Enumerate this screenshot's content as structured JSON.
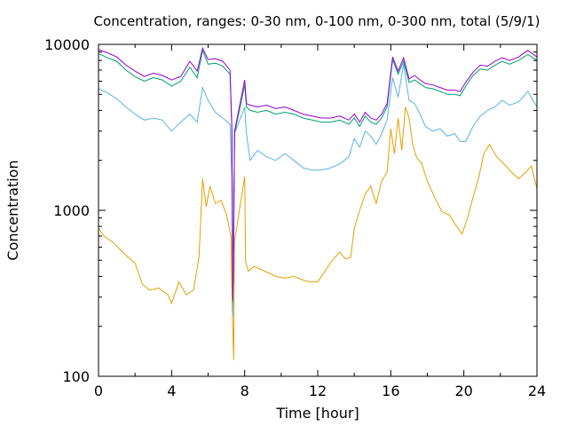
{
  "chart_data": {
    "type": "line",
    "title": "Concentration, ranges: 0-30 nm, 0-100 nm, 0-300 nm, total (5/9/1)",
    "xlabel": "Time [hour]",
    "ylabel": "Concentration",
    "xlim": [
      0,
      24
    ],
    "ylim": [
      100,
      10000
    ],
    "yscale": "log",
    "grid": false,
    "x_ticks": [
      0,
      4,
      8,
      12,
      16,
      20,
      24
    ],
    "x_tick_labels": [
      "0",
      "4",
      "8",
      "12",
      "16",
      "20",
      "24"
    ],
    "y_ticks": [
      100,
      1000,
      10000
    ],
    "y_tick_labels": [
      "100",
      "1000",
      "10000"
    ],
    "series": [
      {
        "color": "#e69f00",
        "x": [
          0,
          0.3,
          0.8,
          1.4,
          2.0,
          2.4,
          2.8,
          3.3,
          3.8,
          4.0,
          4.4,
          4.8,
          5.2,
          5.5,
          5.7,
          5.9,
          6.1,
          6.4,
          6.7,
          7.0,
          7.25,
          7.32,
          7.4,
          7.45,
          8.0,
          8.05,
          8.2,
          8.5,
          8.9,
          9.3,
          9.7,
          10.2,
          10.7,
          11.2,
          11.6,
          12.0,
          12.4,
          12.8,
          13.2,
          13.5,
          13.8,
          14.0,
          14.3,
          14.6,
          14.9,
          15.2,
          15.5,
          15.8,
          16.0,
          16.2,
          16.4,
          16.6,
          16.8,
          17.0,
          17.2,
          17.4,
          17.7,
          18.0,
          18.4,
          18.8,
          19.2,
          19.6,
          19.9,
          20.2,
          20.5,
          20.8,
          21.1,
          21.4,
          21.8,
          22.2,
          22.6,
          23.0,
          23.4,
          23.7,
          24.0
        ],
        "y": [
          780,
          700,
          640,
          550,
          480,
          360,
          330,
          340,
          310,
          275,
          370,
          310,
          330,
          520,
          1550,
          1050,
          1400,
          1100,
          1150,
          950,
          700,
          260,
          125,
          650,
          1600,
          490,
          430,
          460,
          440,
          420,
          400,
          390,
          400,
          380,
          370,
          370,
          430,
          500,
          560,
          510,
          520,
          780,
          1000,
          1250,
          1400,
          1100,
          1500,
          1700,
          3100,
          2200,
          3600,
          2300,
          4200,
          3600,
          2500,
          2100,
          1900,
          1500,
          1200,
          980,
          940,
          800,
          720,
          900,
          1200,
          1550,
          2200,
          2500,
          2100,
          1900,
          1700,
          1550,
          1700,
          1850,
          1350
        ]
      },
      {
        "color": "#56b4e9",
        "x": [
          0,
          0.5,
          1.0,
          1.5,
          2.0,
          2.5,
          3.0,
          3.5,
          4.0,
          4.5,
          5.0,
          5.4,
          5.7,
          6.0,
          6.4,
          6.8,
          7.2,
          7.3,
          7.35,
          7.4,
          7.45,
          8.0,
          8.1,
          8.3,
          8.7,
          9.2,
          9.7,
          10.2,
          10.7,
          11.2,
          11.7,
          12.2,
          12.7,
          13.2,
          13.7,
          14.0,
          14.3,
          14.6,
          14.9,
          15.2,
          15.5,
          15.8,
          16.1,
          16.4,
          16.7,
          17.0,
          17.3,
          17.6,
          17.9,
          18.3,
          18.7,
          19.1,
          19.5,
          19.8,
          20.1,
          20.5,
          20.9,
          21.3,
          21.7,
          22.1,
          22.5,
          23.0,
          23.5,
          24.0
        ],
        "y": [
          5400,
          5100,
          4700,
          4200,
          3800,
          3500,
          3600,
          3500,
          3000,
          3400,
          3800,
          3400,
          5500,
          4600,
          3900,
          3600,
          3300,
          1500,
          230,
          600,
          2900,
          4200,
          2900,
          2000,
          2300,
          2100,
          2000,
          2200,
          2000,
          1800,
          1750,
          1750,
          1800,
          1900,
          2100,
          2700,
          2400,
          3000,
          2800,
          2500,
          2900,
          3500,
          6300,
          4800,
          7600,
          4600,
          4400,
          3800,
          3200,
          3000,
          3100,
          2800,
          2900,
          2600,
          2600,
          3200,
          3700,
          4000,
          4200,
          4600,
          4300,
          4500,
          5200,
          4200
        ]
      },
      {
        "color": "#009e73",
        "x": [
          0,
          0.5,
          1.0,
          1.5,
          2.0,
          2.5,
          3.0,
          3.5,
          4.0,
          4.5,
          5.0,
          5.4,
          5.7,
          6.0,
          6.4,
          6.8,
          7.2,
          7.3,
          7.35,
          7.4,
          7.45,
          8.0,
          8.1,
          8.3,
          8.7,
          9.2,
          9.7,
          10.2,
          10.7,
          11.2,
          11.7,
          12.2,
          12.7,
          13.2,
          13.7,
          14.0,
          14.3,
          14.6,
          14.9,
          15.2,
          15.5,
          15.8,
          16.1,
          16.4,
          16.7,
          17.0,
          17.3,
          17.6,
          17.9,
          18.3,
          18.7,
          19.1,
          19.5,
          19.8,
          20.1,
          20.5,
          20.9,
          21.3,
          21.7,
          22.1,
          22.5,
          23.0,
          23.5,
          24.0
        ],
        "y": [
          8800,
          8300,
          7900,
          7000,
          6400,
          6000,
          6300,
          6100,
          5600,
          6000,
          7300,
          6300,
          9200,
          7600,
          7700,
          7400,
          6600,
          3000,
          280,
          700,
          2900,
          5700,
          4200,
          4000,
          3900,
          4000,
          3800,
          3900,
          3800,
          3600,
          3500,
          3400,
          3400,
          3500,
          3300,
          3600,
          3200,
          3700,
          3400,
          3300,
          3600,
          4200,
          8100,
          6600,
          7900,
          5900,
          6100,
          5800,
          5500,
          5400,
          5200,
          5000,
          5000,
          4900,
          5600,
          6500,
          7100,
          7000,
          7500,
          7900,
          7600,
          8000,
          8700,
          8000
        ]
      },
      {
        "color": "#9400d3",
        "x": [
          0,
          0.5,
          1.0,
          1.5,
          2.0,
          2.5,
          3.0,
          3.5,
          4.0,
          4.5,
          5.0,
          5.4,
          5.7,
          6.0,
          6.4,
          6.8,
          7.2,
          7.3,
          7.35,
          7.4,
          7.45,
          8.0,
          8.1,
          8.3,
          8.7,
          9.2,
          9.7,
          10.2,
          10.7,
          11.2,
          11.7,
          12.2,
          12.7,
          13.2,
          13.7,
          14.0,
          14.3,
          14.6,
          14.9,
          15.2,
          15.5,
          15.8,
          16.1,
          16.4,
          16.7,
          17.0,
          17.3,
          17.6,
          17.9,
          18.3,
          18.7,
          19.1,
          19.5,
          19.8,
          20.1,
          20.5,
          20.9,
          21.3,
          21.7,
          22.1,
          22.5,
          23.0,
          23.5,
          24.0
        ],
        "y": [
          9300,
          8900,
          8400,
          7500,
          6900,
          6400,
          6700,
          6500,
          6100,
          6400,
          7900,
          6900,
          9500,
          8100,
          8200,
          7900,
          7000,
          3100,
          290,
          710,
          3000,
          6100,
          4400,
          4300,
          4200,
          4300,
          4100,
          4200,
          4000,
          3800,
          3700,
          3600,
          3600,
          3700,
          3500,
          3800,
          3400,
          3900,
          3600,
          3500,
          3800,
          4400,
          8400,
          6900,
          8300,
          6200,
          6500,
          6100,
          5800,
          5700,
          5500,
          5300,
          5300,
          5200,
          5900,
          6800,
          7500,
          7400,
          7900,
          8300,
          8000,
          8400,
          9200,
          8400
        ]
      }
    ]
  }
}
